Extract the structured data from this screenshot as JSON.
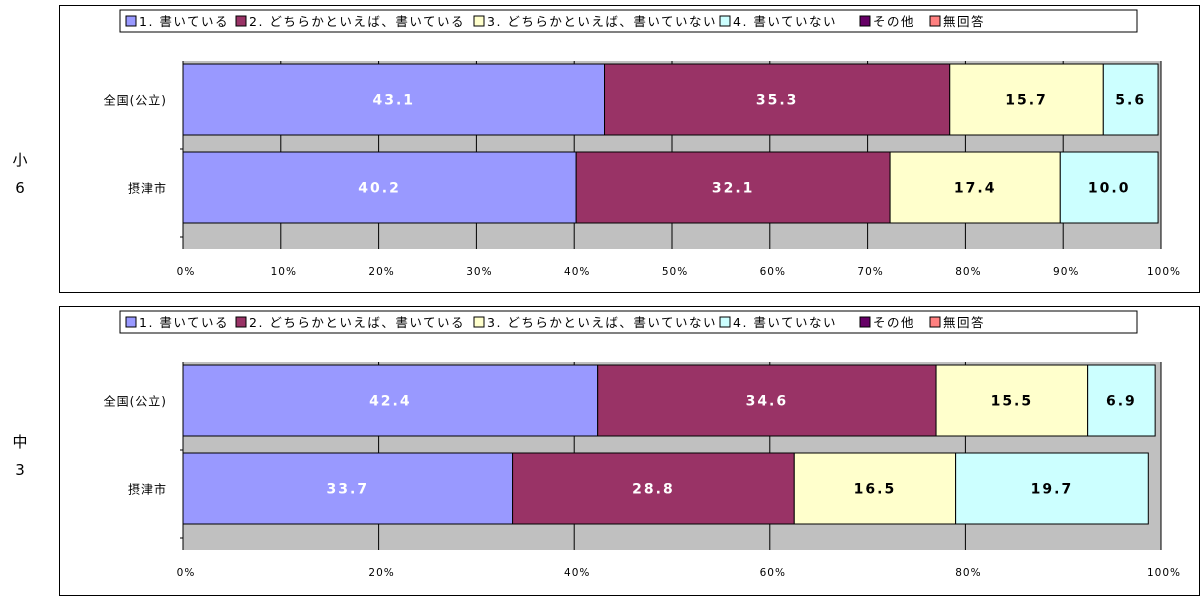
{
  "chart_data": [
    {
      "type": "bar",
      "orientation": "horizontal",
      "stacked": true,
      "group_label": "小6",
      "group_label_chars": [
        "小",
        "6"
      ],
      "categories": [
        "全国(公立)",
        "摂津市"
      ],
      "series": [
        {
          "name": "1. 書いている",
          "values": [
            43.1,
            40.2
          ],
          "color": "#9999ff"
        },
        {
          "name": "2. どちらかといえば、書いている",
          "values": [
            35.3,
            32.1
          ],
          "color": "#993366"
        },
        {
          "name": "3. どちらかといえば、書いていない",
          "values": [
            15.7,
            17.4
          ],
          "color": "#ffffcc"
        },
        {
          "name": "4. 書いていない",
          "values": [
            5.6,
            10.0
          ],
          "color": "#ccffff"
        },
        {
          "name": "その他",
          "values": [
            0,
            0
          ],
          "color": "#660066"
        },
        {
          "name": "無回答",
          "values": [
            0,
            0
          ],
          "color": "#ff8080"
        }
      ],
      "data_labels": [
        [
          "43.1",
          "35.3",
          "15.7",
          "5.6"
        ],
        [
          "40.2",
          "32.1",
          "17.4",
          "10.0"
        ]
      ],
      "xlim": [
        0,
        100
      ],
      "xticks": [
        "0%",
        "10%",
        "20%",
        "30%",
        "40%",
        "50%",
        "60%",
        "70%",
        "80%",
        "90%",
        "100%"
      ],
      "legend_position": "top",
      "grid": true
    },
    {
      "type": "bar",
      "orientation": "horizontal",
      "stacked": true,
      "group_label": "中3",
      "group_label_chars": [
        "中",
        "3"
      ],
      "categories": [
        "全国(公立)",
        "摂津市"
      ],
      "series": [
        {
          "name": "1. 書いている",
          "values": [
            42.4,
            33.7
          ],
          "color": "#9999ff"
        },
        {
          "name": "2. どちらかといえば、書いている",
          "values": [
            34.6,
            28.8
          ],
          "color": "#993366"
        },
        {
          "name": "3. どちらかといえば、書いていない",
          "values": [
            15.5,
            16.5
          ],
          "color": "#ffffcc"
        },
        {
          "name": "4. 書いていない",
          "values": [
            6.9,
            19.7
          ],
          "color": "#ccffff"
        },
        {
          "name": "その他",
          "values": [
            0,
            0
          ],
          "color": "#660066"
        },
        {
          "name": "無回答",
          "values": [
            0,
            0
          ],
          "color": "#ff8080"
        }
      ],
      "data_labels": [
        [
          "42.4",
          "34.6",
          "15.5",
          "6.9"
        ],
        [
          "33.7",
          "28.8",
          "16.5",
          "19.7"
        ]
      ],
      "xlim": [
        0,
        100
      ],
      "xticks": [
        "0%",
        "20%",
        "40%",
        "60%",
        "80%",
        "100%"
      ],
      "legend_position": "top",
      "grid": true
    }
  ],
  "plot_background": "#c0c0c0",
  "grid_color": "#000000"
}
